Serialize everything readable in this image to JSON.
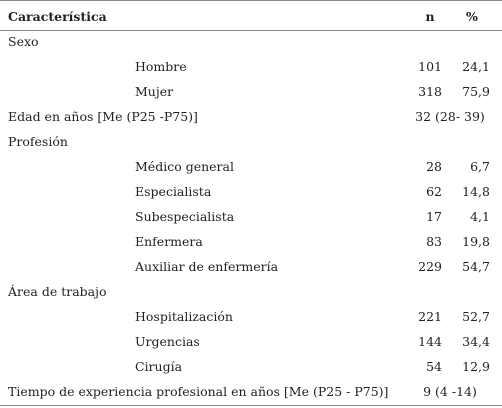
{
  "table": {
    "header": [
      "Característica",
      "n",
      "%"
    ],
    "rows": [
      [
        "Sexo"
      ],
      [
        "Hombre",
        "101",
        "24,1"
      ],
      [
        "Mujer",
        "318",
        "75,9"
      ],
      [
        "Edad en años [Me (P25 -P75)]",
        "32 (28- 39)"
      ],
      [
        "Profesión"
      ],
      [
        "Médico general",
        "28",
        "6,7"
      ],
      [
        "Especialista",
        "62",
        "14,8"
      ],
      [
        "Subespecialista",
        "17",
        "4,1"
      ],
      [
        "Enfermera",
        "83",
        "19,8"
      ],
      [
        "Auxiliar de enfermería",
        "229",
        "54,7"
      ],
      [
        "Área de trabajo"
      ],
      [
        "Hospitalización",
        "221",
        "52,7"
      ],
      [
        "Urgencias",
        "144",
        "34,4"
      ],
      [
        "Cirugía",
        "54",
        "12,9"
      ],
      [
        "Tiempo de experiencia profesional en años [Me (P25 - P75)]",
        "9 (4 -14)"
      ]
    ]
  }
}
